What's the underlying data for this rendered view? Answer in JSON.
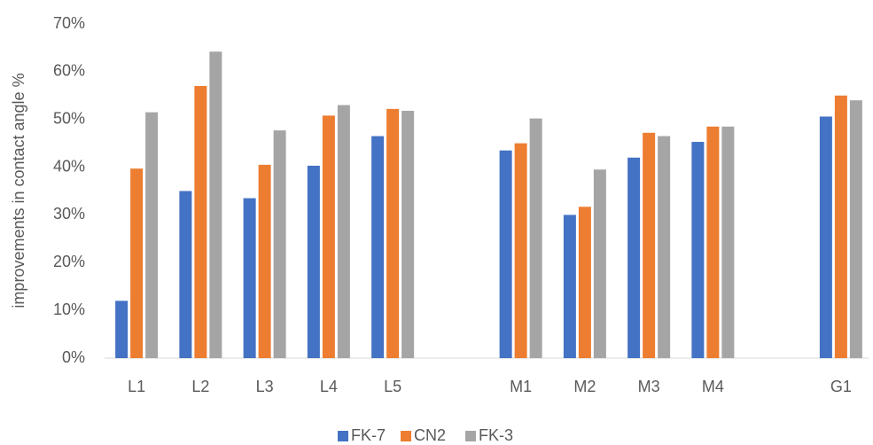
{
  "chart_data": {
    "type": "bar",
    "y_label": "improvements in contact angle %",
    "categories": [
      "L1",
      "L2",
      "L3",
      "L4",
      "L5",
      null,
      "M1",
      "M2",
      "M3",
      "M4",
      null,
      "G1"
    ],
    "series": [
      {
        "name": "FK-7",
        "color": "#4472c4",
        "values": [
          12,
          35,
          33.5,
          40.3,
          46.5,
          null,
          43.5,
          30,
          42,
          45.3,
          null,
          50.6
        ]
      },
      {
        "name": "CN2",
        "color": "#ed7d31",
        "values": [
          39.7,
          57,
          40.5,
          50.8,
          52.2,
          null,
          45,
          31.7,
          47.2,
          48.5,
          null,
          55
        ]
      },
      {
        "name": "FK-3",
        "color": "#a5a5a5",
        "values": [
          51.5,
          64.2,
          47.7,
          53,
          51.8,
          null,
          50.2,
          39.5,
          46.5,
          48.5,
          null,
          54
        ]
      }
    ],
    "ylim": [
      0,
      70
    ],
    "yticks": [
      {
        "value": 0,
        "label": "0%"
      },
      {
        "value": 10,
        "label": "10%"
      },
      {
        "value": 20,
        "label": "20%"
      },
      {
        "value": 30,
        "label": "30%"
      },
      {
        "value": 40,
        "label": "40%"
      },
      {
        "value": 50,
        "label": "50%"
      },
      {
        "value": 60,
        "label": "60%"
      },
      {
        "value": 70,
        "label": "70%"
      }
    ],
    "grid": false,
    "legend": "bottom"
  }
}
